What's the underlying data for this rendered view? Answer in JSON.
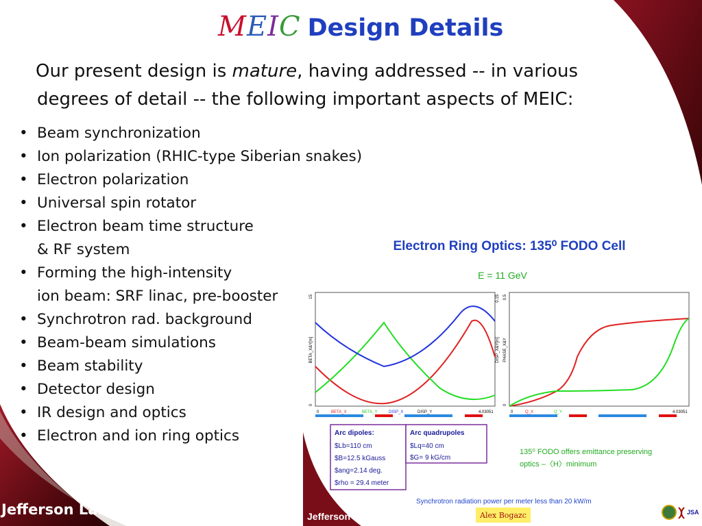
{
  "slide": {
    "title_logo": [
      "M",
      "E",
      "I",
      "C"
    ],
    "title_logo_colors": [
      "#c8102e",
      "#2c5cb8",
      "#7a2d9c",
      "#3a9a3a"
    ],
    "title_text": "Design Details",
    "intro_before": "Our present design is ",
    "intro_emph": "mature",
    "intro_after": ", having addressed -- in various",
    "intro_line2": "degrees of detail -- the following important aspects of MEIC:",
    "bullets": [
      {
        "line1": "Beam synchronization",
        "line2": ""
      },
      {
        "line1": "Ion polarization (RHIC-type Siberian snakes)",
        "line2": ""
      },
      {
        "line1": "Electron polarization",
        "line2": ""
      },
      {
        "line1": "Universal spin rotator",
        "line2": ""
      },
      {
        "line1": "Electron beam time structure",
        "line2": "& RF system"
      },
      {
        "line1": "Forming the high-intensity",
        "line2": "ion beam: SRF linac, pre-booster"
      },
      {
        "line1": "Synchrotron rad. background",
        "line2": ""
      },
      {
        "line1": "Beam-beam simulations",
        "line2": ""
      },
      {
        "line1": "Beam stability",
        "line2": ""
      },
      {
        "line1": "Detector design",
        "line2": ""
      },
      {
        "line1": "IR design and optics",
        "line2": ""
      },
      {
        "line1": "Electron and ion ring optics",
        "line2": ""
      }
    ],
    "footer_logo": "Jefferson Lab"
  },
  "figure": {
    "title": "Electron Ring Optics: 135⁰ FODO Cell",
    "subtitle": "E = 11 GeV",
    "left_plot": {
      "ylabel": "BETA_X&Y[m]",
      "ylabel_right": "DISP_X&Y[m]",
      "ymax_left": "15",
      "ymax_right": "0.15",
      "ymin": "0",
      "xmin": "0",
      "xmax": "4.03051",
      "legend": [
        "BETA_X",
        "BETA_Y",
        "DISP_X",
        "DISP_Y"
      ],
      "legend_colors": [
        "#e02020",
        "#22cc22",
        "#2233dd",
        "#111111"
      ]
    },
    "right_plot": {
      "ylabel": "PHASE_X&Y",
      "ymax": "0.5",
      "ymin": "0",
      "xmin": "0",
      "xmax": "4.03051",
      "legend": [
        "Q_X",
        "Q_Y"
      ],
      "legend_colors": [
        "#e02020",
        "#22cc22"
      ]
    },
    "arc_dipoles": {
      "heading": "Arc dipoles:",
      "lines": [
        "$Lb=110 cm",
        "$B=12.5 kGauss",
        "$ang=2.14 deg.",
        "$rho = 29.4 meter"
      ]
    },
    "arc_quadrupoles": {
      "heading": "Arc quadrupoles",
      "lines": [
        "$Lq=40 cm",
        "$G= 9 kG/cm"
      ]
    },
    "fodo_note_line1": "135⁰ FODO offers emittance preserving",
    "fodo_note_line2": "optics –〈H〉minimum",
    "sync_note": "Synchrotron radiation power per meter less than 20 kW/m",
    "author": "Alex Bogazc",
    "footer_logo": "Jefferson Lab",
    "footer_badge": "JSA",
    "colors": {
      "title": "#1f3fbf",
      "subtitle": "#22aa22",
      "box_border": "#7a2d9c",
      "note_green": "#22aa22",
      "note_blue": "#2244cc",
      "author_bg": "#ffee66"
    }
  }
}
